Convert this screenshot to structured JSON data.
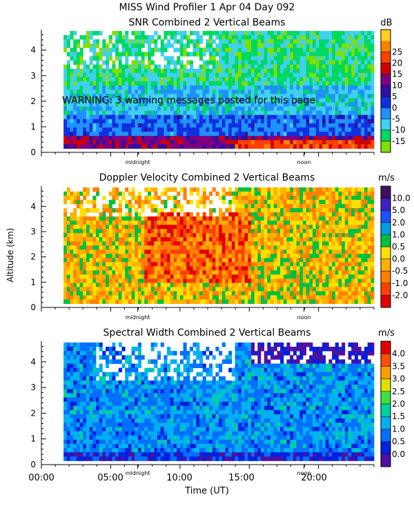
{
  "page": {
    "title": "MISS Wind Profiler    1 Apr 04 Day 092",
    "warning": "WARNING:  3 warning messages posted for this page",
    "shared_ylabel": "Altitude (km)",
    "shared_xlabel": "Time (UT)",
    "x_ticks": [
      "00:00",
      "05:00",
      "10:00",
      "15:00",
      "20:00"
    ],
    "day_markers": [
      "midnight",
      "noon"
    ]
  },
  "chart_data": [
    {
      "type": "heatmap",
      "title": "SNR Combined 2 Vertical Beams",
      "unit": "dB",
      "xlabel": "Time (UT)",
      "ylabel": "Altitude (km)",
      "xlim": [
        0,
        24
      ],
      "ylim": [
        0,
        4.8
      ],
      "y_ticks": [
        "0",
        "1",
        "2",
        "3",
        "4"
      ],
      "data_xlim": [
        1.6,
        24
      ],
      "data_ylim": [
        0.15,
        4.75
      ],
      "colorbar": {
        "levels": [
          "-15",
          "-10",
          "-5",
          "0",
          "5",
          "10",
          "15",
          "20",
          "25"
        ],
        "colors": [
          "#80e000",
          "#00d860",
          "#40d0f0",
          "#2090ff",
          "#1030e0",
          "#3010a0",
          "#800080",
          "#d00000",
          "#ff4000",
          "#ff8000",
          "#ffd020"
        ]
      }
    },
    {
      "type": "heatmap",
      "title": "Doppler Velocity Combined 2 Vertical Beams",
      "unit": "m/s",
      "xlabel": "Time (UT)",
      "ylabel": "Altitude (km)",
      "xlim": [
        0,
        24
      ],
      "ylim": [
        0,
        4.8
      ],
      "y_ticks": [
        "0",
        "1",
        "2",
        "3",
        "4"
      ],
      "data_xlim": [
        1.6,
        24
      ],
      "data_ylim": [
        0.15,
        4.75
      ],
      "colorbar": {
        "levels": [
          "-2.0",
          "-1.0",
          "-0.5",
          "0.0",
          "0.5",
          "1.0",
          "2.0",
          "5.0",
          "10.0"
        ],
        "colors": [
          "#e00000",
          "#ff4000",
          "#ff8000",
          "#ffb000",
          "#ffe000",
          "#00c040",
          "#00a0e0",
          "#2050ff",
          "#4020c0",
          "#401060"
        ]
      }
    },
    {
      "type": "heatmap",
      "title": "Spectral Width Combined 2 Vertical Beams",
      "unit": "m/s",
      "xlabel": "Time (UT)",
      "ylabel": "Altitude (km)",
      "xlim": [
        0,
        24
      ],
      "ylim": [
        0,
        4.8
      ],
      "y_ticks": [
        "0",
        "1",
        "2",
        "3",
        "4"
      ],
      "data_xlim": [
        1.6,
        24
      ],
      "data_ylim": [
        0.15,
        4.75
      ],
      "colorbar": {
        "levels": [
          "0.0",
          "0.5",
          "1.0",
          "1.5",
          "2.0",
          "2.5",
          "3.0",
          "3.5",
          "4.0"
        ],
        "colors": [
          "#5010a0",
          "#0020e0",
          "#0070ff",
          "#00b0f0",
          "#00d0a0",
          "#40e040",
          "#e0e000",
          "#ffa000",
          "#ff5000",
          "#e00000"
        ]
      }
    }
  ]
}
